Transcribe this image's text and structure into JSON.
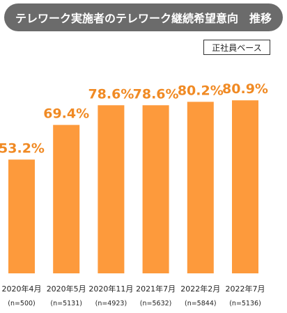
{
  "header": {
    "title": "テレワーク実施者のテレワーク継続希望意向　推移"
  },
  "badge": {
    "label": "正社員ベース"
  },
  "colors": {
    "bar": "#fd9a3c",
    "value_label": "#f08a24",
    "banner": "#6b6b6b"
  },
  "chart_data": {
    "type": "bar",
    "title": "テレワーク実施者のテレワーク継続希望意向　推移",
    "categories": [
      "2020年4月",
      "2020年5月",
      "2020年11月",
      "2021年7月",
      "2022年2月",
      "2022年7月"
    ],
    "sample_sizes": [
      "(n=500)",
      "(n=5131)",
      "(n=4923)",
      "(n=5632)",
      "(n=5844)",
      "(n=5136)"
    ],
    "values": [
      53.2,
      69.4,
      78.6,
      78.6,
      80.2,
      80.9
    ],
    "value_labels": [
      "53.2%",
      "69.4%",
      "78.6%",
      "78.6%",
      "80.2%",
      "80.9%"
    ],
    "unit": "%",
    "xlabel": "",
    "ylabel": "",
    "grid": false,
    "legend": "none"
  }
}
